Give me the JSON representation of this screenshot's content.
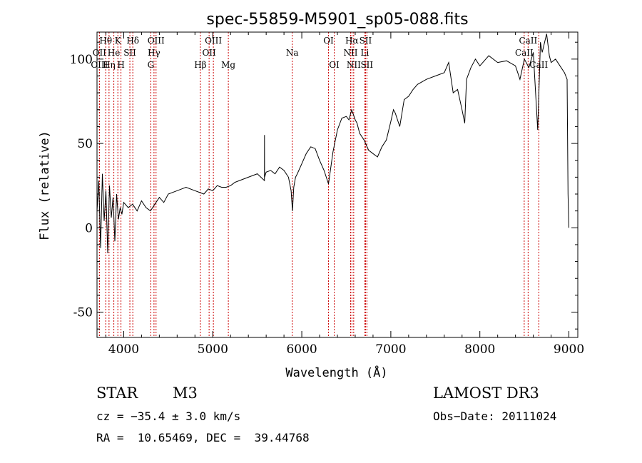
{
  "chart_data": {
    "type": "line",
    "title": "spec-55859-M5901_sp05-088.fits",
    "xlabel": "Wavelength (Å)",
    "ylabel": "Flux (relative)",
    "xlim": [
      3700,
      9100
    ],
    "ylim": [
      -65,
      116
    ],
    "x_ticks": [
      4000,
      5000,
      6000,
      7000,
      8000,
      9000
    ],
    "y_ticks": [
      -50,
      0,
      50,
      100
    ],
    "series": [
      {
        "color": "#000000",
        "x": [
          3700,
          3720,
          3740,
          3760,
          3780,
          3800,
          3820,
          3840,
          3860,
          3880,
          3900,
          3920,
          3940,
          3960,
          3980,
          4000,
          4050,
          4100,
          4150,
          4200,
          4250,
          4300,
          4350,
          4400,
          4450,
          4500,
          4600,
          4700,
          4800,
          4850,
          4900,
          4950,
          5000,
          5050,
          5100,
          5150,
          5200,
          5250,
          5300,
          5400,
          5500,
          5580,
          5581,
          5582,
          5600,
          5650,
          5700,
          5750,
          5800,
          5850,
          5880,
          5895,
          5910,
          5930,
          5950,
          6000,
          6050,
          6100,
          6150,
          6200,
          6250,
          6300,
          6350,
          6400,
          6450,
          6500,
          6530,
          6560,
          6580,
          6600,
          6620,
          6650,
          6700,
          6750,
          6800,
          6850,
          6900,
          6950,
          7000,
          7030,
          7050,
          7100,
          7150,
          7200,
          7250,
          7300,
          7400,
          7500,
          7600,
          7650,
          7700,
          7750,
          7800,
          7830,
          7850,
          7900,
          7950,
          8000,
          8100,
          8200,
          8300,
          8400,
          8450,
          8500,
          8550,
          8600,
          8650,
          8662,
          8680,
          8700,
          8750,
          8780,
          8800,
          8850,
          8900,
          8950,
          8980,
          8990,
          9000
        ],
        "y": [
          10,
          28,
          -12,
          32,
          4,
          22,
          -15,
          25,
          6,
          18,
          -8,
          20,
          5,
          12,
          8,
          15,
          12,
          14,
          10,
          16,
          12,
          10,
          14,
          18,
          15,
          20,
          22,
          24,
          22,
          21,
          20,
          23,
          22,
          25,
          24,
          24,
          25,
          27,
          28,
          30,
          32,
          28,
          55,
          30,
          33,
          34,
          32,
          36,
          34,
          30,
          22,
          10,
          24,
          30,
          32,
          38,
          44,
          48,
          47,
          40,
          34,
          26,
          45,
          58,
          65,
          66,
          64,
          70,
          67,
          64,
          62,
          56,
          52,
          46,
          44,
          42,
          48,
          52,
          63,
          70,
          68,
          60,
          76,
          78,
          82,
          85,
          88,
          90,
          92,
          98,
          80,
          82,
          70,
          62,
          88,
          95,
          100,
          96,
          102,
          98,
          99,
          96,
          88,
          100,
          95,
          104,
          58,
          78,
          110,
          104,
          115,
          102,
          98,
          100,
          96,
          92,
          88,
          20,
          0
        ]
      }
    ],
    "line_markers": [
      {
        "label": "Hθ",
        "x": 3798,
        "row": 1
      },
      {
        "label": "OII",
        "x": 3727,
        "row": 2
      },
      {
        "label": "OIII",
        "x": 3727,
        "row": 3
      },
      {
        "label": "Hη",
        "x": 3835,
        "row": 3
      },
      {
        "label": "K",
        "x": 3934,
        "row": 1
      },
      {
        "label": "He",
        "x": 3889,
        "row": 2
      },
      {
        "label": "H",
        "x": 3969,
        "row": 3
      },
      {
        "label": "SII",
        "x": 4069,
        "row": 2
      },
      {
        "label": "Hδ",
        "x": 4102,
        "row": 1
      },
      {
        "label": "OIII",
        "x": 4363,
        "row": 1
      },
      {
        "label": "Hγ",
        "x": 4340,
        "row": 2
      },
      {
        "label": "G",
        "x": 4304,
        "row": 3
      },
      {
        "label": "Hβ",
        "x": 4861,
        "row": 3
      },
      {
        "label": "OIII",
        "x": 5007,
        "row": 1
      },
      {
        "label": "OII",
        "x": 4959,
        "row": 2
      },
      {
        "label": "Mg",
        "x": 5175,
        "row": 3
      },
      {
        "label": "Na",
        "x": 5893,
        "row": 2
      },
      {
        "label": "OI",
        "x": 6300,
        "row": 1
      },
      {
        "label": "OI",
        "x": 6364,
        "row": 3
      },
      {
        "label": "Hα",
        "x": 6563,
        "row": 1
      },
      {
        "label": "NII",
        "x": 6548,
        "row": 2
      },
      {
        "label": "NII",
        "x": 6583,
        "row": 3
      },
      {
        "label": "SII",
        "x": 6716,
        "row": 1
      },
      {
        "label": "Li",
        "x": 6708,
        "row": 2
      },
      {
        "label": "SII",
        "x": 6731,
        "row": 3
      },
      {
        "label": "CaII",
        "x": 8542,
        "row": 1
      },
      {
        "label": "CaII",
        "x": 8498,
        "row": 2
      },
      {
        "label": "CaII",
        "x": 8662,
        "row": 3
      }
    ],
    "marker_color": "#cc0000",
    "grid": false
  },
  "info": {
    "class_label": "STAR",
    "subclass": "M3",
    "survey": "LAMOST DR3",
    "cz": "cz = −35.4 ± 3.0 km/s",
    "obs_date": "Obs−Date: 20111024",
    "coords": "RA =  10.65469, DEC =  39.44768"
  }
}
